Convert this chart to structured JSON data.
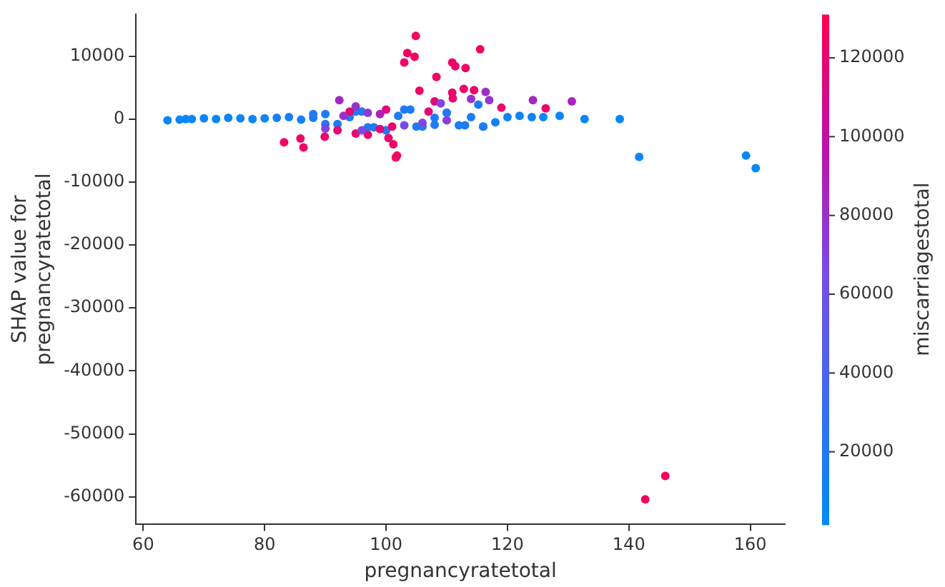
{
  "chart_data": {
    "type": "scatter",
    "xlabel": "pregnancyratetotal",
    "ylabel": "SHAP value for\npregnancyratetotal",
    "clabel": "miscarriagestotal",
    "xlim": [
      58.8,
      165.7
    ],
    "xticks": [
      60,
      80,
      100,
      120,
      140,
      160
    ],
    "ylim": [
      -64300,
      16600
    ],
    "yticks": [
      10000,
      0,
      -10000,
      -20000,
      -30000,
      -40000,
      -50000,
      -60000
    ],
    "clim": [
      1700,
      131000
    ],
    "cticks": [
      20000,
      40000,
      60000,
      80000,
      100000,
      120000
    ],
    "grid": false,
    "legend": false,
    "marker": "circle",
    "x": [
      64,
      66,
      67,
      68,
      70,
      72,
      74,
      76,
      78,
      80,
      82,
      84,
      86,
      88,
      90,
      92,
      94,
      96,
      98,
      100,
      102,
      104,
      106,
      108,
      110,
      112,
      114,
      116,
      118,
      120,
      122,
      124,
      125.9,
      128.6,
      132.7,
      138.5,
      141.7,
      159.3,
      160.9,
      88,
      90,
      95,
      97,
      100,
      103,
      105,
      108,
      110,
      113,
      115.2,
      116,
      104.9,
      103.5,
      103,
      104.7,
      115.5,
      110.9,
      111.4,
      113.1,
      108.3,
      105.5,
      110.9,
      112.8,
      114.5,
      119,
      126.3,
      83.2,
      85.9,
      86.4,
      89.9,
      101.6,
      101.8,
      101.2,
      100.4,
      92,
      95,
      97,
      99,
      101,
      94,
      100,
      107,
      108,
      111,
      142.7,
      146,
      92.3,
      95,
      97,
      124.2,
      130.6,
      116.4,
      117,
      109,
      114,
      90,
      96,
      103,
      106,
      110,
      93,
      99
    ],
    "values": [
      -200,
      -100,
      0,
      0,
      100,
      0,
      200,
      100,
      0,
      100,
      200,
      300,
      -100,
      200,
      800,
      -800,
      300,
      1200,
      -1300,
      -1800,
      500,
      1500,
      -1200,
      200,
      1000,
      -1000,
      300,
      -1200,
      -500,
      300,
      500,
      300,
      300,
      500,
      0,
      0,
      -6000,
      -5800,
      -7800,
      800,
      -800,
      1200,
      -1300,
      -1800,
      1500,
      -1200,
      -900,
      1000,
      -1000,
      2300,
      -1200,
      13200,
      10500,
      9000,
      9900,
      11100,
      9000,
      8400,
      8100,
      6700,
      4500,
      4200,
      4800,
      4600,
      1800,
      1700,
      -3700,
      -3100,
      -4500,
      -2800,
      -6100,
      -5800,
      -4000,
      -3000,
      -1800,
      -2300,
      -2500,
      -1600,
      -1200,
      1200,
      1500,
      1200,
      2800,
      3300,
      -60400,
      -56700,
      3000,
      2000,
      1000,
      3000,
      2800,
      4300,
      3000,
      2500,
      3200,
      -1500,
      -1800,
      -1000,
      -600,
      -200,
      500,
      800
    ],
    "cvalues": [
      6000,
      6000,
      7000,
      6000,
      8000,
      7000,
      9000,
      8000,
      9000,
      10000,
      12000,
      14000,
      15000,
      16000,
      18000,
      17000,
      19000,
      18000,
      20000,
      19000,
      15000,
      16000,
      17000,
      18000,
      14000,
      15000,
      16000,
      13000,
      12000,
      10000,
      9000,
      8000,
      7000,
      8000,
      6000,
      5000,
      6000,
      5000,
      5000,
      20000,
      21000,
      22000,
      19000,
      20000,
      21000,
      18000,
      19000,
      20000,
      17000,
      16000,
      18000,
      125000,
      124000,
      123000,
      126000,
      125000,
      124000,
      122000,
      123000,
      125000,
      124000,
      121000,
      123000,
      122000,
      120000,
      124000,
      125000,
      123000,
      124000,
      122000,
      126000,
      125000,
      124000,
      120000,
      118000,
      121000,
      119000,
      117000,
      122000,
      119000,
      116000,
      118000,
      117000,
      120000,
      126000,
      126000,
      85000,
      80000,
      75000,
      85000,
      88000,
      82000,
      78000,
      70000,
      80000,
      72000,
      68000,
      65000,
      70000,
      75000,
      82000,
      90000
    ]
  }
}
